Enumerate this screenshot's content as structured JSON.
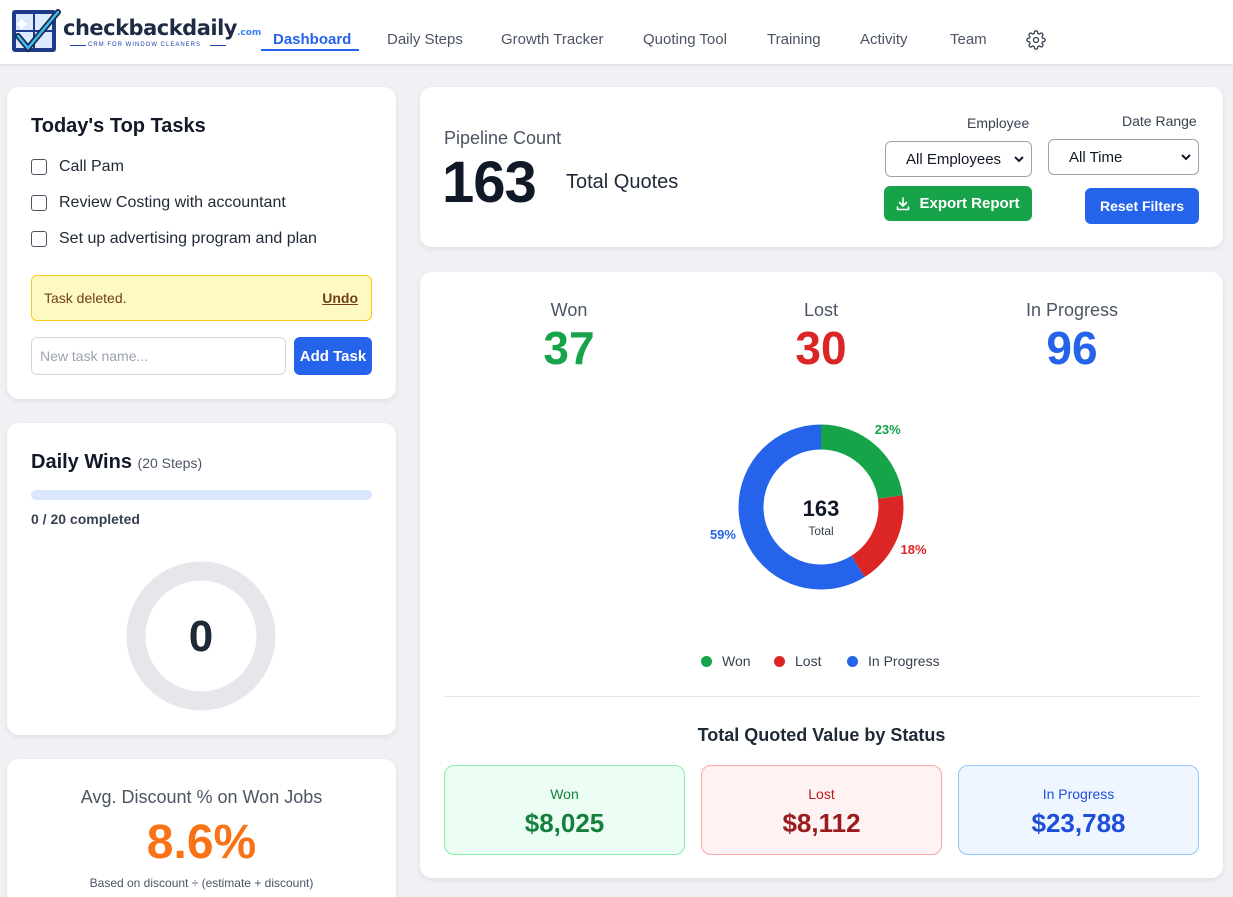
{
  "brand": {
    "name": "checkbackdaily",
    "domain_suffix": ".com",
    "tagline": "CRM FOR WINDOW CLEANERS"
  },
  "nav": {
    "items": [
      {
        "label": "Dashboard",
        "active": true
      },
      {
        "label": "Daily Steps"
      },
      {
        "label": "Growth Tracker"
      },
      {
        "label": "Quoting Tool"
      },
      {
        "label": "Training"
      },
      {
        "label": "Activity"
      },
      {
        "label": "Team"
      }
    ],
    "settings_icon": "gear-icon"
  },
  "top_tasks": {
    "title": "Today's Top Tasks",
    "tasks": [
      {
        "label": "Call Pam",
        "checked": false
      },
      {
        "label": "Review Costing with accountant",
        "checked": false
      },
      {
        "label": "Set up advertising program and plan",
        "checked": false
      }
    ],
    "alert": {
      "message": "Task deleted.",
      "action": "Undo"
    },
    "new_task": {
      "placeholder": "New task name...",
      "value": ""
    },
    "add_button": "Add Task"
  },
  "daily_wins": {
    "title": "Daily Wins",
    "subtitle": "(20 Steps)",
    "completed_text": "0 / 20 completed",
    "progress_fraction": 0,
    "ring_value": "0"
  },
  "avg_discount": {
    "title": "Avg. Discount % on Won Jobs",
    "value": "8.6%",
    "note": "Based on discount ÷ (estimate + discount)"
  },
  "pipeline": {
    "label": "Pipeline Count",
    "count": "163",
    "count_caption": "Total Quotes",
    "filters": {
      "employee": {
        "label": "Employee",
        "selected": "All Employees"
      },
      "date_range": {
        "label": "Date Range",
        "selected": "All Time"
      }
    },
    "export_button": "Export Report",
    "reset_button": "Reset Filters"
  },
  "status_counts": {
    "won": {
      "label": "Won",
      "value": "37"
    },
    "lost": {
      "label": "Lost",
      "value": "30"
    },
    "in_progress": {
      "label": "In Progress",
      "value": "96"
    }
  },
  "chart_data": {
    "type": "pie",
    "center_value": "163",
    "center_label": "Total",
    "categories": [
      "Won",
      "Lost",
      "In Progress"
    ],
    "values": [
      37,
      30,
      96
    ],
    "percent_labels": [
      "23%",
      "18%",
      "59%"
    ],
    "colors": [
      "#16a34a",
      "#dc2626",
      "#2563eb"
    ],
    "legend_position": "bottom"
  },
  "quoted_value": {
    "title": "Total Quoted Value by Status",
    "boxes": [
      {
        "label": "Won",
        "value": "$8,025"
      },
      {
        "label": "Lost",
        "value": "$8,112"
      },
      {
        "label": "In Progress",
        "value": "$23,788"
      }
    ]
  },
  "colors": {
    "accent": "#2563eb",
    "won": "#16a34a",
    "lost": "#dc2626",
    "in_progress": "#2563eb",
    "discount": "#f97316"
  }
}
